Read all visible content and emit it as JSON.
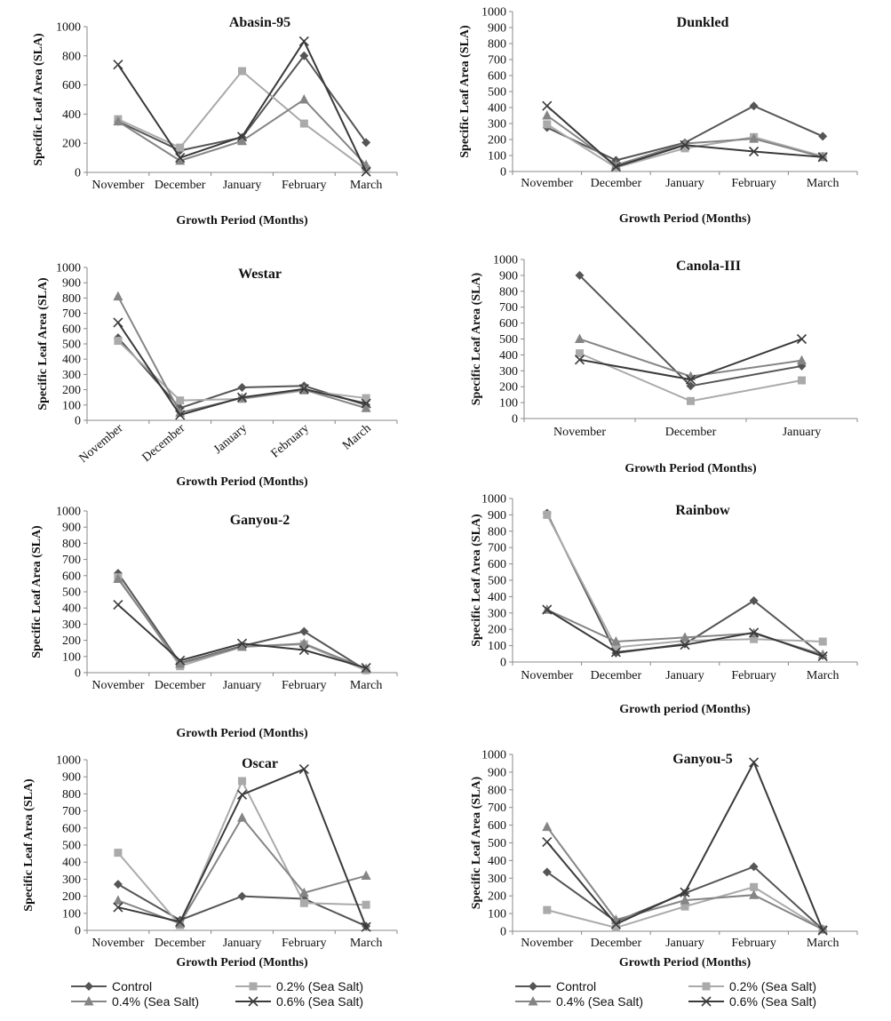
{
  "series_styles": [
    {
      "name": "Control",
      "color": "#555555",
      "marker": "diamond"
    },
    {
      "name": "0.2% (Sea Salt)",
      "color": "#aaaaaa",
      "marker": "square"
    },
    {
      "name": "0.4% (Sea Salt)",
      "color": "#858585",
      "marker": "triangle"
    },
    {
      "name": "0.6% (Sea Salt)",
      "color": "#3a3a3a",
      "marker": "x"
    }
  ],
  "legends": [
    {
      "items": [
        "Control",
        "0.2% (Sea Salt)",
        "0.4% (Sea Salt)",
        "0.6% (Sea Salt)"
      ]
    },
    {
      "items": [
        "Control",
        "0.2% (Sea Salt)",
        "0.4% (Sea Salt)",
        "0.6% (Sea Salt)"
      ]
    }
  ],
  "chart_data": [
    {
      "type": "line",
      "title": "Abasin-95",
      "xlabel": "Growth Period (Months)",
      "ylabel": "Specific Leaf Area (SLA)",
      "ylim": [
        0,
        1000
      ],
      "yticks": [
        0,
        200,
        400,
        600,
        800,
        1000
      ],
      "xlabel_rotated": false,
      "categories": [
        "November",
        "December",
        "January",
        "February",
        "March"
      ],
      "series": [
        {
          "name": "Control",
          "values": [
            350,
            150,
            240,
            800,
            205
          ]
        },
        {
          "name": "0.2% (Sea Salt)",
          "values": [
            365,
            170,
            695,
            335,
            20
          ]
        },
        {
          "name": "0.4% (Sea Salt)",
          "values": [
            350,
            80,
            215,
            500,
            50
          ]
        },
        {
          "name": "0.6% (Sea Salt)",
          "values": [
            740,
            100,
            245,
            900,
            5
          ]
        }
      ]
    },
    {
      "type": "line",
      "title": "Dunkled",
      "xlabel": "Growth Period (Months)",
      "ylabel": "Specific Leaf Area (SLA)",
      "ylim": [
        0,
        1000
      ],
      "yticks": [
        0,
        100,
        200,
        300,
        400,
        500,
        600,
        700,
        800,
        900,
        1000
      ],
      "xlabel_rotated": false,
      "categories": [
        "November",
        "December",
        "January",
        "February",
        "March"
      ],
      "series": [
        {
          "name": "Control",
          "values": [
            275,
            70,
            180,
            410,
            220
          ]
        },
        {
          "name": "0.2% (Sea Salt)",
          "values": [
            295,
            25,
            145,
            215,
            95
          ]
        },
        {
          "name": "0.4% (Sea Salt)",
          "values": [
            350,
            40,
            175,
            205,
            90
          ]
        },
        {
          "name": "0.6% (Sea Salt)",
          "values": [
            410,
            30,
            165,
            125,
            90
          ]
        }
      ]
    },
    {
      "type": "line",
      "title": "Westar",
      "xlabel": "Growth Period (Months)",
      "ylabel": "Specific Leaf Area (SLA)",
      "ylim": [
        0,
        1000
      ],
      "yticks": [
        0,
        100,
        200,
        300,
        400,
        500,
        600,
        700,
        800,
        900,
        1000
      ],
      "xlabel_rotated": true,
      "categories": [
        "November",
        "December",
        "January",
        "February",
        "March"
      ],
      "series": [
        {
          "name": "Control",
          "values": [
            540,
            80,
            215,
            225,
            100
          ]
        },
        {
          "name": "0.2% (Sea Salt)",
          "values": [
            520,
            130,
            140,
            195,
            145
          ]
        },
        {
          "name": "0.4% (Sea Salt)",
          "values": [
            810,
            50,
            145,
            200,
            80
          ]
        },
        {
          "name": "0.6% (Sea Salt)",
          "values": [
            640,
            35,
            150,
            205,
            110
          ]
        }
      ]
    },
    {
      "type": "line",
      "title": "Canola-III",
      "xlabel": "Growth Period (Months)",
      "ylabel": "Specific Leaf Area (SLA)",
      "ylim": [
        0,
        1000
      ],
      "yticks": [
        0,
        100,
        200,
        300,
        400,
        500,
        600,
        700,
        800,
        900,
        1000
      ],
      "xlabel_rotated": false,
      "categories": [
        "November",
        "December",
        "January"
      ],
      "series": [
        {
          "name": "Control",
          "values": [
            900,
            205,
            330
          ]
        },
        {
          "name": "0.2% (Sea Salt)",
          "values": [
            410,
            110,
            240
          ]
        },
        {
          "name": "0.4% (Sea Salt)",
          "values": [
            500,
            265,
            365
          ]
        },
        {
          "name": "0.6% (Sea Salt)",
          "values": [
            370,
            245,
            500
          ]
        }
      ]
    },
    {
      "type": "line",
      "title": "Ganyou-2",
      "xlabel": "Growth Period (Months)",
      "ylabel": "Specific Leaf Area (SLA)",
      "ylim": [
        0,
        1000
      ],
      "yticks": [
        0,
        100,
        200,
        300,
        400,
        500,
        600,
        700,
        800,
        900,
        1000
      ],
      "xlabel_rotated": false,
      "categories": [
        "November",
        "December",
        "January",
        "February",
        "March"
      ],
      "series": [
        {
          "name": "Control",
          "values": [
            615,
            60,
            165,
            255,
            15
          ]
        },
        {
          "name": "0.2% (Sea Salt)",
          "values": [
            590,
            40,
            160,
            175,
            15
          ]
        },
        {
          "name": "0.4% (Sea Salt)",
          "values": [
            580,
            55,
            160,
            180,
            25
          ]
        },
        {
          "name": "0.6% (Sea Salt)",
          "values": [
            420,
            75,
            180,
            140,
            30
          ]
        }
      ]
    },
    {
      "type": "line",
      "title": "Rainbow",
      "xlabel": "Growth period (Months)",
      "ylabel": "Specific Leaf Area (SLA)",
      "ylim": [
        0,
        1000
      ],
      "yticks": [
        0,
        100,
        200,
        300,
        400,
        500,
        600,
        700,
        800,
        900,
        1000
      ],
      "xlabel_rotated": false,
      "categories": [
        "November",
        "December",
        "January",
        "February",
        "March"
      ],
      "series": [
        {
          "name": "Control",
          "values": [
            910,
            55,
            110,
            375,
            40
          ]
        },
        {
          "name": "0.2% (Sea Salt)",
          "values": [
            900,
            90,
            130,
            140,
            125
          ]
        },
        {
          "name": "0.4% (Sea Salt)",
          "values": [
            320,
            125,
            150,
            175,
            45
          ]
        },
        {
          "name": "0.6% (Sea Salt)",
          "values": [
            320,
            60,
            105,
            180,
            35
          ]
        }
      ]
    },
    {
      "type": "line",
      "title": "Oscar",
      "xlabel": "Growth Period (Months)",
      "ylabel": "Specific Leaf Area (SLA)",
      "ylim": [
        0,
        1000
      ],
      "yticks": [
        0,
        100,
        200,
        300,
        400,
        500,
        600,
        700,
        800,
        900,
        1000
      ],
      "xlabel_rotated": false,
      "categories": [
        "November",
        "December",
        "January",
        "February",
        "March"
      ],
      "series": [
        {
          "name": "Control",
          "values": [
            270,
            60,
            200,
            185,
            25
          ]
        },
        {
          "name": "0.2% (Sea Salt)",
          "values": [
            455,
            30,
            875,
            160,
            150
          ]
        },
        {
          "name": "0.4% (Sea Salt)",
          "values": [
            175,
            40,
            660,
            220,
            320
          ]
        },
        {
          "name": "0.6% (Sea Salt)",
          "values": [
            135,
            50,
            795,
            945,
            20
          ]
        }
      ]
    },
    {
      "type": "line",
      "title": "Ganyou-5",
      "xlabel": "Growth Period (Months)",
      "ylabel": "Specific Leaf Area (SLA)",
      "ylim": [
        0,
        1000
      ],
      "yticks": [
        0,
        100,
        200,
        300,
        400,
        500,
        600,
        700,
        800,
        900,
        1000
      ],
      "xlabel_rotated": false,
      "categories": [
        "November",
        "December",
        "January",
        "February",
        "March"
      ],
      "series": [
        {
          "name": "Control",
          "values": [
            335,
            55,
            215,
            365,
            10
          ]
        },
        {
          "name": "0.2% (Sea Salt)",
          "values": [
            120,
            20,
            140,
            250,
            10
          ]
        },
        {
          "name": "0.4% (Sea Salt)",
          "values": [
            590,
            65,
            175,
            205,
            10
          ]
        },
        {
          "name": "0.6% (Sea Salt)",
          "values": [
            505,
            40,
            220,
            955,
            5
          ]
        }
      ]
    }
  ]
}
